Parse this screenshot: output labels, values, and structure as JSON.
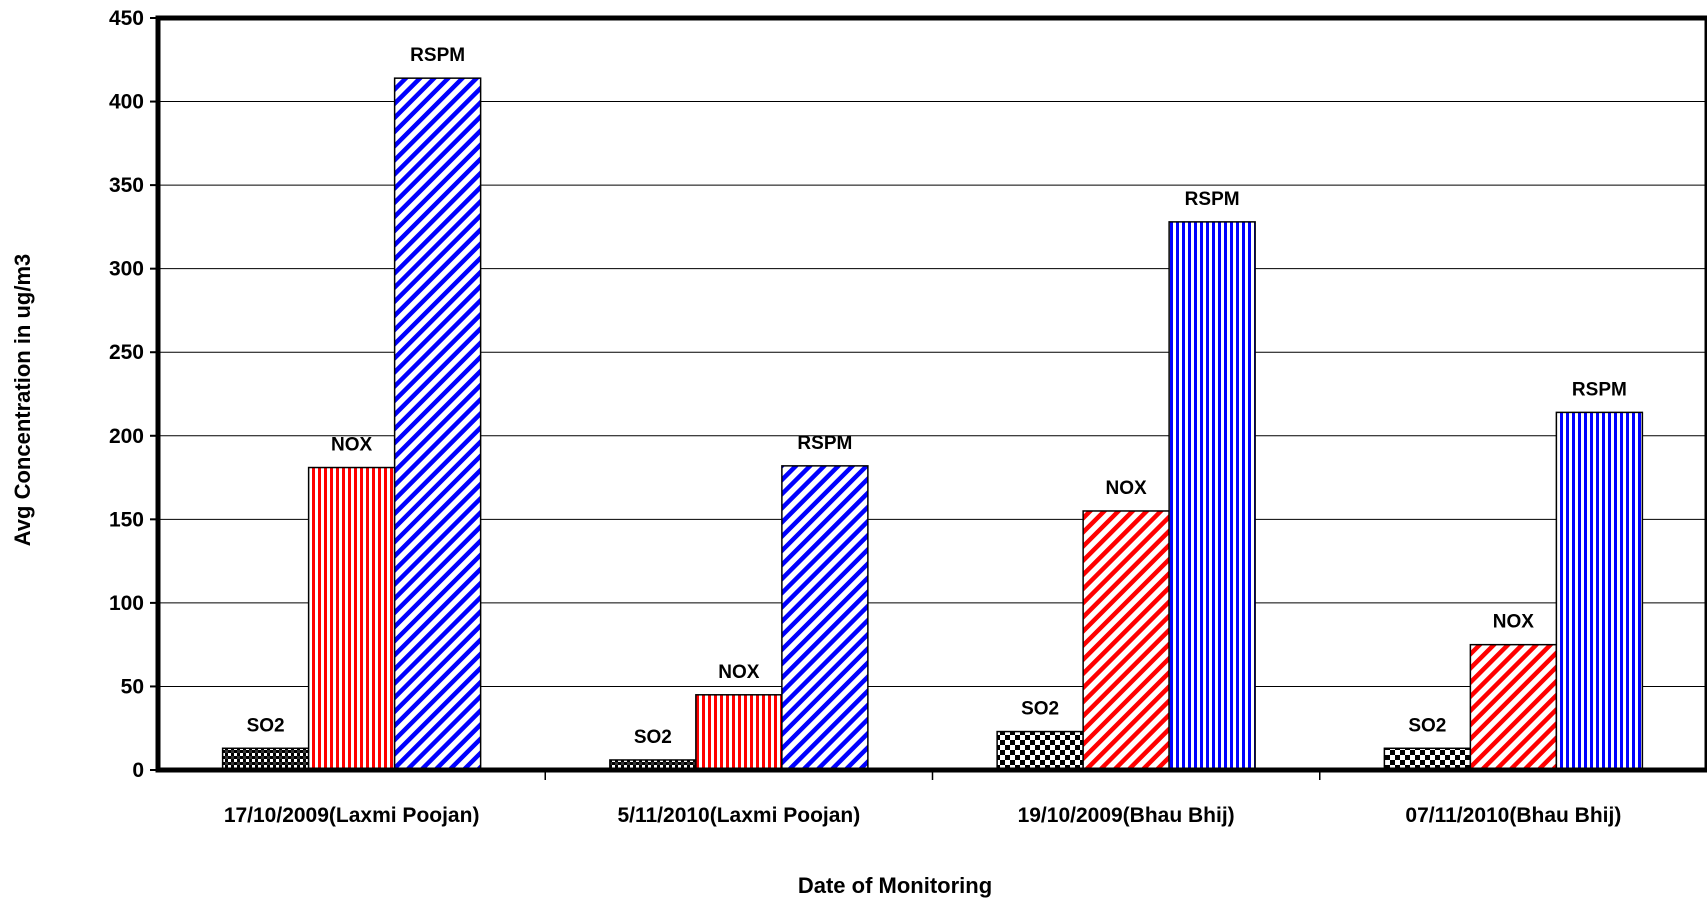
{
  "chart_data": {
    "type": "bar",
    "title": "",
    "xlabel": "Date of Monitoring",
    "ylabel": "Avg Concentration in ug/m3",
    "ylim": [
      0,
      450
    ],
    "yticks": [
      0,
      50,
      100,
      150,
      200,
      250,
      300,
      350,
      400,
      450
    ],
    "grid": true,
    "legend": "none",
    "categories": [
      "17/10/2009(Laxmi Poojan)",
      "5/11/2010(Laxmi Poojan)",
      "19/10/2009(Bhau Bhij)",
      "07/11/2010(Bhau Bhij)"
    ],
    "series": [
      {
        "name": "SO2",
        "values": [
          13,
          6,
          23,
          13
        ],
        "color": "#000000",
        "patterns": [
          "dots",
          "dots",
          "checker",
          "checker"
        ]
      },
      {
        "name": "NOX",
        "values": [
          181,
          45,
          155,
          75
        ],
        "color": "#ff0000",
        "patterns": [
          "vertical",
          "vertical",
          "diagonal",
          "diagonal"
        ]
      },
      {
        "name": "RSPM",
        "values": [
          414,
          182,
          328,
          214
        ],
        "color": "#0000ff",
        "patterns": [
          "diagonal",
          "diagonal",
          "vertical",
          "vertical"
        ]
      }
    ]
  }
}
